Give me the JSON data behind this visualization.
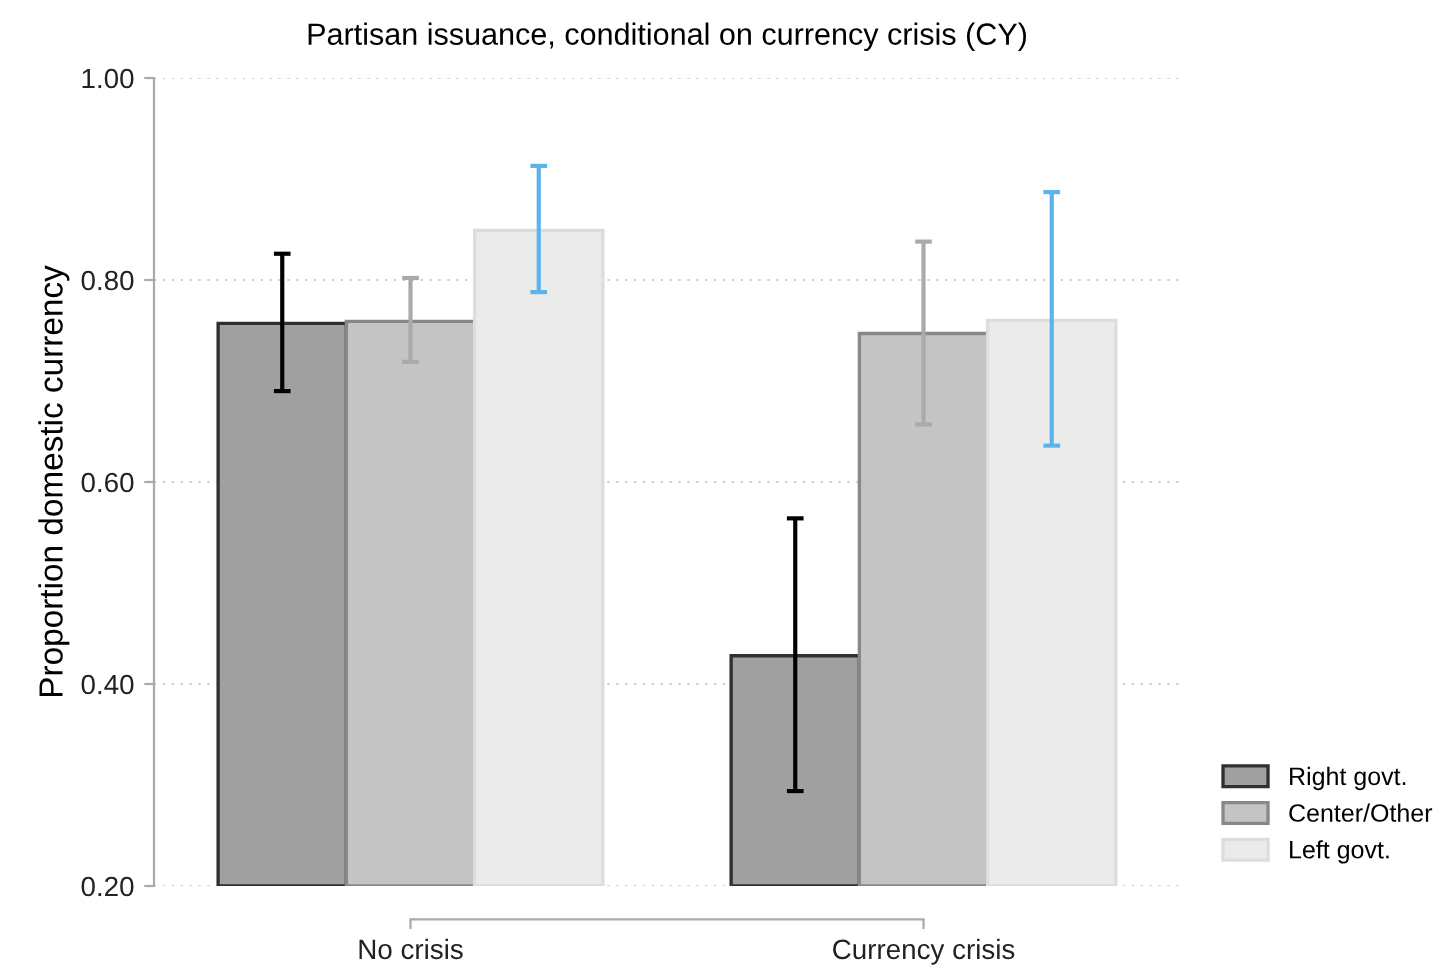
{
  "chart_data": {
    "type": "bar",
    "title": "Partisan issuance, conditional on currency crisis (CY)",
    "ylabel": "Proportion domestic currency",
    "categories": [
      "No crisis",
      "Currency crisis"
    ],
    "series": [
      {
        "name": "Right govt.",
        "color": "#a0a0a0",
        "values": [
          0.757,
          0.428
        ],
        "errors": [
          [
            0.69,
            0.826
          ],
          [
            0.294,
            0.564
          ]
        ]
      },
      {
        "name": "Center/Other",
        "color": "#c4c4c4",
        "values": [
          0.759,
          0.747
        ],
        "errors": [
          [
            0.719,
            0.802
          ],
          [
            0.657,
            0.838
          ]
        ]
      },
      {
        "name": "Left govt.",
        "color": "#ebebeb",
        "values": [
          0.849,
          0.76
        ],
        "errors": [
          [
            0.788,
            0.913
          ],
          [
            0.636,
            0.887
          ]
        ]
      }
    ],
    "ylim": [
      0.2,
      1.0
    ],
    "yticks": [
      {
        "value": 0.2,
        "label": "0.20"
      },
      {
        "value": 0.4,
        "label": "0.40"
      },
      {
        "value": 0.6,
        "label": "0.60"
      },
      {
        "value": 0.8,
        "label": "0.80"
      },
      {
        "value": 1.0,
        "label": "1.00"
      }
    ],
    "grid": "y",
    "legend": "bottom right"
  }
}
